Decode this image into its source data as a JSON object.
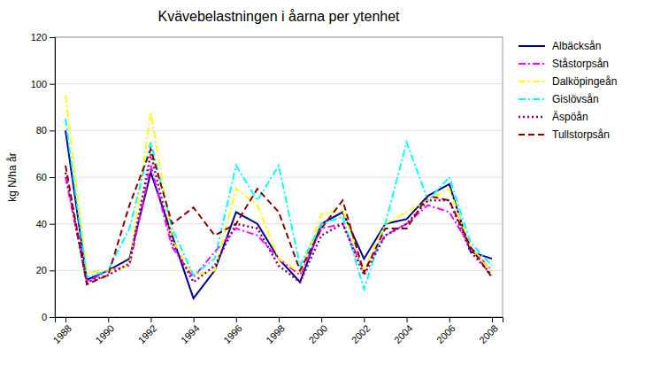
{
  "chart_data": {
    "type": "line",
    "title": "Kvävebelastningen i åarna per ytenhet",
    "ylabel": "kg N/ha år",
    "x": [
      1988,
      1989,
      1990,
      1991,
      1992,
      1993,
      1994,
      1995,
      1996,
      1997,
      1998,
      1999,
      2000,
      2001,
      2002,
      2003,
      2004,
      2005,
      2006,
      2007,
      2008
    ],
    "series": [
      {
        "name": "Albäcksån",
        "color": "#00008B",
        "line_style": "solid",
        "values": [
          80,
          16,
          20,
          25,
          62,
          35,
          8,
          20,
          45,
          40,
          25,
          15,
          40,
          45,
          25,
          40,
          42,
          52,
          57,
          28,
          25
        ]
      },
      {
        "name": "Ståstorpsån",
        "color": "#FF00FF",
        "line_style": "dashdot",
        "values": [
          60,
          15,
          20,
          22,
          65,
          30,
          17,
          28,
          38,
          35,
          25,
          18,
          38,
          40,
          20,
          35,
          40,
          48,
          45,
          30,
          20
        ]
      },
      {
        "name": "Dalköpingeån",
        "color": "#FFFF00",
        "line_style": "dashdot",
        "values": [
          95,
          19,
          20,
          22,
          88,
          33,
          18,
          20,
          55,
          48,
          25,
          19,
          44,
          46,
          20,
          40,
          45,
          50,
          55,
          30,
          20
        ]
      },
      {
        "name": "Gislövsån",
        "color": "#00FFFF",
        "line_style": "dashdot",
        "values": [
          85,
          17,
          20,
          38,
          75,
          38,
          18,
          25,
          65,
          50,
          65,
          22,
          40,
          43,
          12,
          40,
          75,
          50,
          60,
          32,
          22
        ]
      },
      {
        "name": "Äspöån",
        "color": "#800080",
        "line_style": "dotted",
        "values": [
          62,
          15,
          18,
          23,
          70,
          32,
          15,
          22,
          40,
          38,
          22,
          15,
          35,
          40,
          18,
          35,
          40,
          50,
          50,
          28,
          18
        ]
      },
      {
        "name": "Tullstorpsån",
        "color": "#8B0000",
        "line_style": "dashed",
        "values": [
          65,
          14,
          18,
          48,
          72,
          40,
          47,
          35,
          40,
          55,
          45,
          20,
          38,
          50,
          19,
          38,
          38,
          52,
          50,
          30,
          17
        ]
      }
    ],
    "xlim": [
      1987.5,
      2008.5
    ],
    "xticks": [
      1988,
      1990,
      1992,
      1994,
      1996,
      1998,
      2000,
      2002,
      2004,
      2006,
      2008
    ],
    "ylim": [
      0,
      120
    ],
    "yticks": [
      0,
      20,
      40,
      60,
      80,
      100,
      120
    ],
    "grid": "y",
    "legend": "right"
  }
}
